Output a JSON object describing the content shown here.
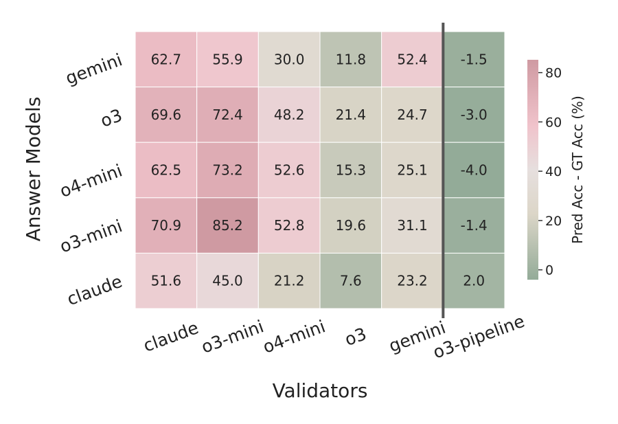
{
  "chart_data": {
    "type": "heatmap",
    "xlabel": "Validators",
    "ylabel": "Answer Models",
    "x_categories": [
      "claude",
      "o3-mini",
      "o4-mini",
      "o3",
      "gemini",
      "o3-pipeline"
    ],
    "y_categories": [
      "gemini",
      "o3",
      "o4-mini",
      "o3-mini",
      "claude"
    ],
    "values": [
      [
        62.7,
        55.9,
        30.0,
        11.8,
        52.4,
        -1.5
      ],
      [
        69.6,
        72.4,
        48.2,
        21.4,
        24.7,
        -3.0
      ],
      [
        62.5,
        73.2,
        52.6,
        15.3,
        25.1,
        -4.0
      ],
      [
        70.9,
        85.2,
        52.8,
        19.6,
        31.1,
        -1.4
      ],
      [
        51.6,
        45.0,
        21.2,
        7.6,
        23.2,
        2.0
      ]
    ],
    "value_labels": [
      [
        "62.7",
        "55.9",
        "30.0",
        "11.8",
        "52.4",
        "-1.5"
      ],
      [
        "69.6",
        "72.4",
        "48.2",
        "21.4",
        "24.7",
        "-3.0"
      ],
      [
        "62.5",
        "73.2",
        "52.6",
        "15.3",
        "25.1",
        "-4.0"
      ],
      [
        "70.9",
        "85.2",
        "52.8",
        "19.6",
        "31.1",
        "-1.4"
      ],
      [
        "51.6",
        "45.0",
        "21.2",
        "7.6",
        "23.2",
        "2.0"
      ]
    ],
    "separator_after_column": 4,
    "colorbar": {
      "label": "Pred Acc - GT Acc (%)",
      "min": -4.0,
      "max": 85.2,
      "ticks": [
        0,
        20,
        40,
        60,
        80
      ],
      "tick_labels": [
        "0",
        "20",
        "40",
        "60",
        "80"
      ],
      "colors": {
        "low": "#93ab98",
        "mid_low": "#dcd6c8",
        "mid": "#e6dfde",
        "mid_high": "#f0c3cb",
        "high": "#cf9aa2"
      }
    }
  }
}
